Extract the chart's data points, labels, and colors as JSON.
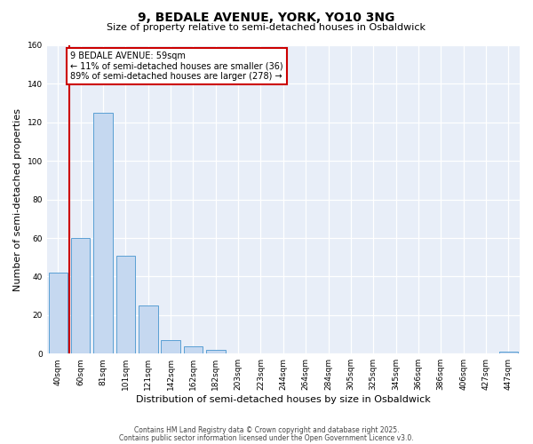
{
  "title": "9, BEDALE AVENUE, YORK, YO10 3NG",
  "subtitle": "Size of property relative to semi-detached houses in Osbaldwick",
  "xlabel": "Distribution of semi-detached houses by size in Osbaldwick",
  "ylabel": "Number of semi-detached properties",
  "bin_labels": [
    "40sqm",
    "60sqm",
    "81sqm",
    "101sqm",
    "121sqm",
    "142sqm",
    "162sqm",
    "182sqm",
    "203sqm",
    "223sqm",
    "244sqm",
    "264sqm",
    "284sqm",
    "305sqm",
    "325sqm",
    "345sqm",
    "366sqm",
    "386sqm",
    "406sqm",
    "427sqm",
    "447sqm"
  ],
  "bar_heights": [
    42,
    60,
    125,
    51,
    25,
    7,
    4,
    2,
    0,
    0,
    0,
    0,
    0,
    0,
    0,
    0,
    0,
    0,
    0,
    0,
    1
  ],
  "bar_color": "#c5d8f0",
  "bar_edge_color": "#5a9fd4",
  "property_line_x": 1,
  "property_line_color": "#cc0000",
  "annotation_title": "9 BEDALE AVENUE: 59sqm",
  "annotation_line1": "← 11% of semi-detached houses are smaller (36)",
  "annotation_line2": "89% of semi-detached houses are larger (278) →",
  "annotation_box_color": "#cc0000",
  "ylim": [
    0,
    160
  ],
  "yticks": [
    0,
    20,
    40,
    60,
    80,
    100,
    120,
    140,
    160
  ],
  "footer_line1": "Contains HM Land Registry data © Crown copyright and database right 2025.",
  "footer_line2": "Contains public sector information licensed under the Open Government Licence v3.0.",
  "bg_color": "#e8eef8",
  "title_fontsize": 10,
  "subtitle_fontsize": 8,
  "bar_width": 0.85
}
